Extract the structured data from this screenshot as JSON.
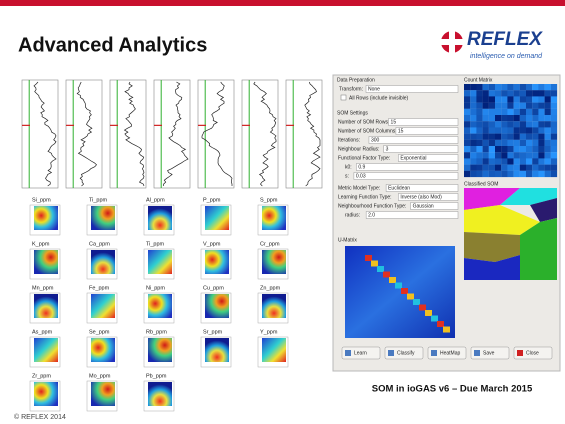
{
  "header": {
    "title": "Advanced Analytics",
    "logo": "REFLEX",
    "tagline": "intelligence on demand"
  },
  "som_maps": [
    "Si_ppm",
    "Ti_ppm",
    "Al_ppm",
    "P_ppm",
    "S_ppm",
    "K_ppm",
    "Ca_ppm",
    "Ti_ppm",
    "V_ppm",
    "Cr_ppm",
    "Mn_ppm",
    "Fe_ppm",
    "Ni_ppm",
    "Cu_ppm",
    "Zn_ppm",
    "As_ppm",
    "Se_ppm",
    "Rb_ppm",
    "Sr_ppm",
    "Y_ppm",
    "Zr_ppm",
    "Mo_ppm",
    "Pb_ppm"
  ],
  "dialog": {
    "data_preparation": "Data Preparation",
    "transform": {
      "label": "Transform:",
      "value": "None"
    },
    "all_rows": "All Rows (include invisible)",
    "som_settings": "SOM Settings",
    "fields": [
      {
        "label": "Number of SOM Rows:",
        "value": "15"
      },
      {
        "label": "Number of SOM Columns:",
        "value": "15"
      },
      {
        "label": "Iterations:",
        "value": "300"
      },
      {
        "label": "Neighbour Radius:",
        "value": "3"
      },
      {
        "label": "Functional Factor Type:",
        "value": "Exponential"
      },
      {
        "label": "k0:",
        "value": "0.9"
      },
      {
        "label": "s:",
        "value": "0.03"
      },
      {
        "label": "Metric Model Type:",
        "value": "Euclidean"
      },
      {
        "label": "Learning Function Type:",
        "value": "Inverse (also Mod)"
      },
      {
        "label": "Neighbourhood Function Type:",
        "value": "Gaussian"
      },
      {
        "label": "radius:",
        "value": "2.0"
      }
    ],
    "count_matrix": "Count Matrix",
    "classified_som": "Classified SOM",
    "u_matrix": "U-Matrix",
    "buttons": [
      "Learn",
      "Classify",
      "HeatMap",
      "Save",
      "Close"
    ]
  },
  "caption": "SOM in ioGAS v6 – Due March 2015",
  "footer": "© REFLEX 2014"
}
